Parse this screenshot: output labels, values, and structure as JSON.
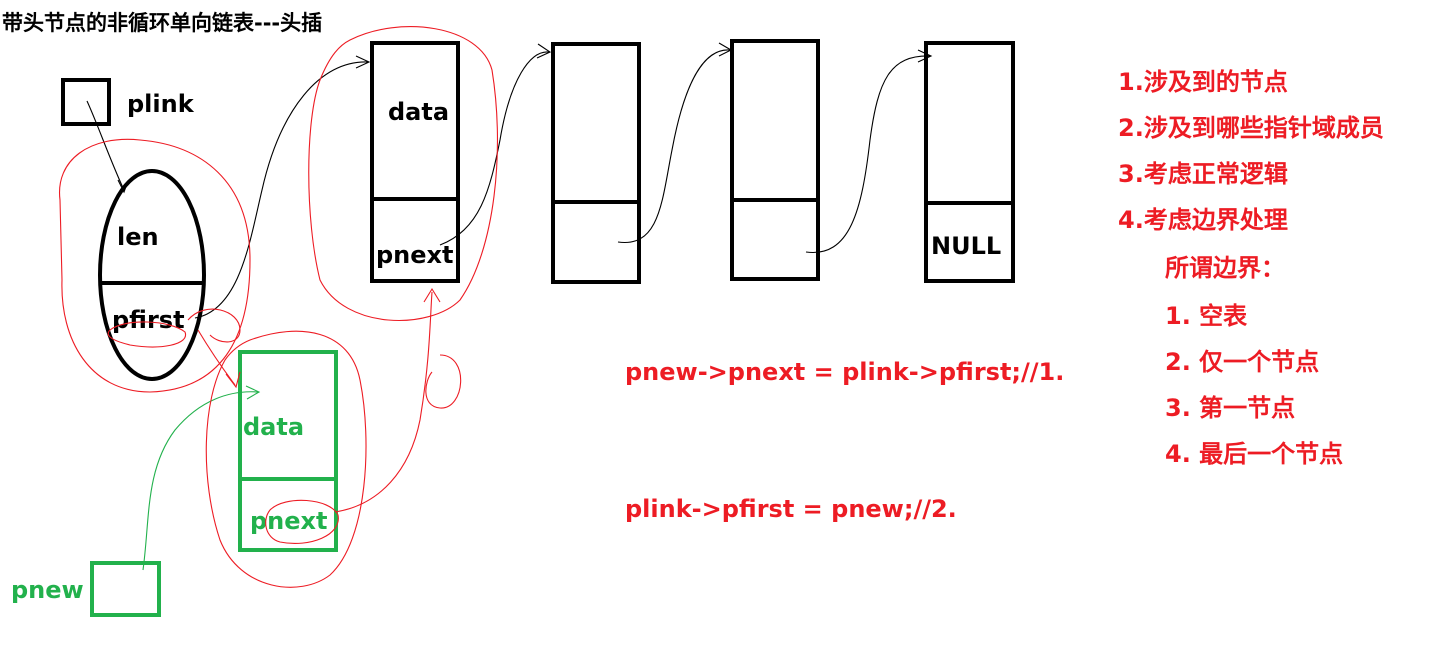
{
  "title": "带头节点的非循环单向链表---头插",
  "head": {
    "pointer_label": "plink",
    "len_label": "len",
    "pfirst_label": "pfirst"
  },
  "nodes": [
    {
      "data_label": "data",
      "next_label": "pnext"
    },
    {
      "data_label": "",
      "next_label": ""
    },
    {
      "data_label": "",
      "next_label": ""
    },
    {
      "data_label": "",
      "next_label": "NULL"
    }
  ],
  "new_node": {
    "pointer_label": "pnew",
    "data_label": "data",
    "next_label": "pnext"
  },
  "code": {
    "line1": "pnew->pnext = plink->pfirst;//1.",
    "line2": "plink->pfirst = pnew;//2."
  },
  "notes": {
    "items": [
      "1.涉及到的节点",
      "2.涉及到哪些指针域成员",
      "3.考虑正常逻辑",
      "4.考虑边界处理"
    ],
    "boundary_title": "所谓边界：",
    "boundary_items": [
      "1. 空表",
      "2. 仅一个节点",
      "3. 第一节点",
      "4. 最后一个节点"
    ]
  },
  "colors": {
    "black": "#000000",
    "green": "#22b14c",
    "red": "#ed1c24"
  }
}
